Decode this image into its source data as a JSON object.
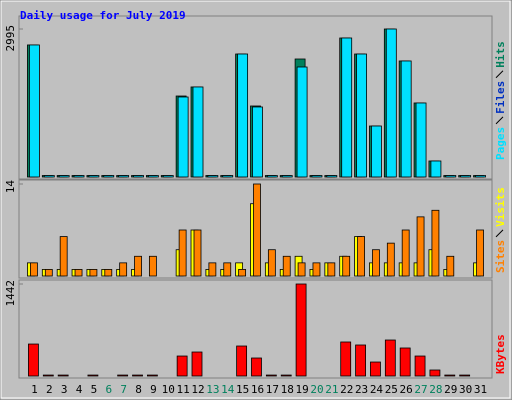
{
  "chart_data": [
    {
      "type": "bar",
      "title": "Daily usage for July 2019",
      "ylim": [
        0,
        2995
      ],
      "yticks": [
        2995
      ],
      "series": [
        {
          "name": "Pages",
          "color": "#00e0ff",
          "values": [
            2672,
            30,
            30,
            30,
            30,
            30,
            30,
            30,
            30,
            30,
            1619,
            1822,
            30,
            30,
            2489,
            1417,
            30,
            30,
            2226,
            30,
            30,
            2813,
            2489,
            1032,
            2995,
            2348,
            1498,
            324,
            30,
            30,
            30
          ]
        },
        {
          "name": "Files",
          "color": "#0030c0",
          "values": [
            10,
            5,
            5,
            5,
            5,
            5,
            5,
            5,
            5,
            5,
            850,
            850,
            5,
            5,
            1255,
            749,
            5,
            5,
            1397,
            5,
            5,
            1417,
            951,
            546,
            1558,
            1154,
            749,
            142,
            5,
            5,
            5
          ]
        },
        {
          "name": "Hits",
          "color": "#00805c",
          "values": [
            2672,
            30,
            30,
            30,
            30,
            30,
            30,
            30,
            30,
            30,
            1639,
            1822,
            30,
            30,
            2489,
            1437,
            30,
            30,
            2388,
            30,
            30,
            2813,
            2489,
            1032,
            2995,
            2348,
            1498,
            324,
            30,
            30,
            30
          ]
        }
      ]
    },
    {
      "type": "bar",
      "ylim": [
        0,
        14
      ],
      "yticks": [
        14
      ],
      "series": [
        {
          "name": "Sites",
          "color": "#ff8000",
          "values": [
            2,
            1,
            6,
            1,
            1,
            1,
            2,
            3,
            3,
            0,
            7,
            7,
            2,
            2,
            1,
            14,
            4,
            3,
            2,
            2,
            2,
            3,
            6,
            4,
            5,
            7,
            9,
            10,
            3,
            0,
            7
          ]
        },
        {
          "name": "Visits",
          "color": "#ffff00",
          "values": [
            2,
            1,
            1,
            1,
            1,
            1,
            1,
            1,
            0,
            0,
            4,
            7,
            1,
            1,
            2,
            11,
            2,
            1,
            3,
            1,
            2,
            3,
            6,
            2,
            2,
            2,
            2,
            4,
            1,
            0,
            2
          ]
        }
      ]
    },
    {
      "type": "bar",
      "ylim": [
        0,
        1442
      ],
      "yticks": [
        1442
      ],
      "categories": [
        "1",
        "2",
        "3",
        "4",
        "5",
        "6",
        "7",
        "8",
        "9",
        "10",
        "11",
        "12",
        "13",
        "14",
        "15",
        "16",
        "17",
        "18",
        "19",
        "20",
        "21",
        "22",
        "23",
        "24",
        "25",
        "26",
        "27",
        "28",
        "29",
        "30",
        "31"
      ],
      "category_colors": [
        "#000000",
        "#000000",
        "#000000",
        "#000000",
        "#000000",
        "#00805c",
        "#00805c",
        "#000000",
        "#000000",
        "#000000",
        "#000000",
        "#000000",
        "#00805c",
        "#00805c",
        "#000000",
        "#000000",
        "#000000",
        "#000000",
        "#000000",
        "#00805c",
        "#00805c",
        "#000000",
        "#000000",
        "#000000",
        "#000000",
        "#000000",
        "#00805c",
        "#00805c",
        "#000000",
        "#000000",
        "#000000"
      ],
      "series": [
        {
          "name": "KBytes",
          "color": "#ff0000",
          "values": [
            501,
            15,
            15,
            0,
            15,
            0,
            15,
            15,
            15,
            0,
            313,
            376,
            0,
            0,
            470,
            282,
            15,
            15,
            1442,
            0,
            0,
            533,
            486,
            219,
            564,
            439,
            313,
            94,
            15,
            15,
            0
          ]
        }
      ]
    }
  ]
}
